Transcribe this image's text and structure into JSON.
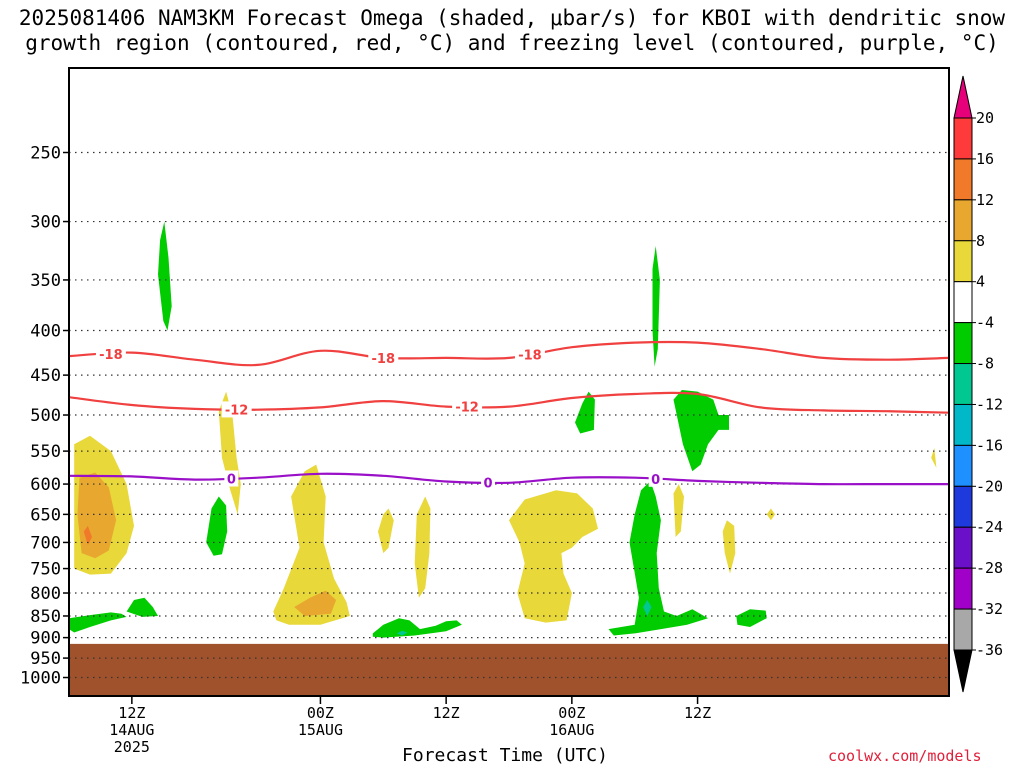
{
  "title_line1": "2025081406 NAM3KM Forecast Omega (shaded, μbar/s) for KBOI with dendritic snow",
  "title_line2": "growth region (contoured, red, °C) and freezing level (contoured, purple, °C)",
  "xlabel": "Forecast Time (UTC)",
  "credit": "coolwx.com/models",
  "chart_data": {
    "type": "contour",
    "y_axis": {
      "label": "",
      "scale": "log-pressure",
      "inverted": true,
      "ticks": [
        250,
        300,
        350,
        400,
        450,
        500,
        550,
        600,
        650,
        700,
        750,
        800,
        850,
        900,
        950,
        1000
      ],
      "range_hpa": [
        200,
        1050
      ]
    },
    "x_axis": {
      "label": "Forecast Time (UTC)",
      "range_hours": [
        6,
        90
      ],
      "ticks": [
        {
          "hour": 12,
          "lines": [
            "12Z",
            "14AUG",
            "2025"
          ]
        },
        {
          "hour": 30,
          "lines": [
            "00Z",
            "15AUG"
          ]
        },
        {
          "hour": 42,
          "lines": [
            "12Z"
          ]
        },
        {
          "hour": 54,
          "lines": [
            "00Z",
            "16AUG"
          ]
        },
        {
          "hour": 66,
          "lines": [
            "12Z"
          ]
        }
      ]
    },
    "grid": true,
    "terrain": {
      "color": "#a0522d",
      "surface_hpa": 915
    },
    "colorbar": {
      "ticks": [
        20,
        16,
        12,
        8,
        4,
        -4,
        -8,
        -12,
        -16,
        -20,
        -24,
        -28,
        -32,
        -36
      ],
      "bands": [
        {
          "color": "#e6007a"
        },
        {
          "color": "#ff3a3a"
        },
        {
          "color": "#f07a2a"
        },
        {
          "color": "#e8a830"
        },
        {
          "color": "#e8d83a"
        },
        {
          "color": "#ffffff"
        },
        {
          "color": "#00cc00"
        },
        {
          "color": "#00c890"
        },
        {
          "color": "#00b8c8"
        },
        {
          "color": "#1e90ff"
        },
        {
          "color": "#1e3adc"
        },
        {
          "color": "#6a10c8"
        },
        {
          "color": "#a000c8"
        },
        {
          "color": "#a8a8a8"
        },
        {
          "color": "#000000"
        }
      ]
    },
    "contours": [
      {
        "name": "-18",
        "color": "#f04040",
        "points": [
          [
            6,
            428
          ],
          [
            12,
            424
          ],
          [
            18,
            432
          ],
          [
            24,
            438
          ],
          [
            30,
            422
          ],
          [
            36,
            430
          ],
          [
            42,
            430
          ],
          [
            48,
            430
          ],
          [
            54,
            418
          ],
          [
            60,
            413
          ],
          [
            66,
            413
          ],
          [
            72,
            420
          ],
          [
            78,
            430
          ],
          [
            84,
            432
          ],
          [
            90,
            430
          ]
        ],
        "labels": [
          {
            "x": 10,
            "text": "-18"
          },
          {
            "x": 36,
            "text": "-18"
          },
          {
            "x": 50,
            "text": "-18"
          }
        ]
      },
      {
        "name": "-12",
        "color": "#f04040",
        "points": [
          [
            6,
            477
          ],
          [
            12,
            487
          ],
          [
            18,
            492
          ],
          [
            24,
            493
          ],
          [
            30,
            490
          ],
          [
            36,
            482
          ],
          [
            42,
            489
          ],
          [
            48,
            489
          ],
          [
            54,
            478
          ],
          [
            60,
            473
          ],
          [
            66,
            473
          ],
          [
            72,
            490
          ],
          [
            78,
            494
          ],
          [
            84,
            495
          ],
          [
            90,
            497
          ]
        ],
        "labels": [
          {
            "x": 22,
            "text": "-12"
          },
          {
            "x": 44,
            "text": "-12"
          }
        ]
      },
      {
        "name": "0",
        "color": "#9a10c8",
        "points": [
          [
            6,
            587
          ],
          [
            12,
            588
          ],
          [
            18,
            593
          ],
          [
            24,
            590
          ],
          [
            30,
            584
          ],
          [
            36,
            587
          ],
          [
            42,
            596
          ],
          [
            48,
            598
          ],
          [
            54,
            590
          ],
          [
            60,
            590
          ],
          [
            66,
            595
          ],
          [
            72,
            598
          ],
          [
            78,
            600
          ],
          [
            84,
            600
          ],
          [
            90,
            600
          ]
        ],
        "labels": [
          {
            "x": 21.5,
            "text": "0"
          },
          {
            "x": 46,
            "text": "0"
          },
          {
            "x": 62,
            "text": "0"
          }
        ]
      }
    ]
  }
}
